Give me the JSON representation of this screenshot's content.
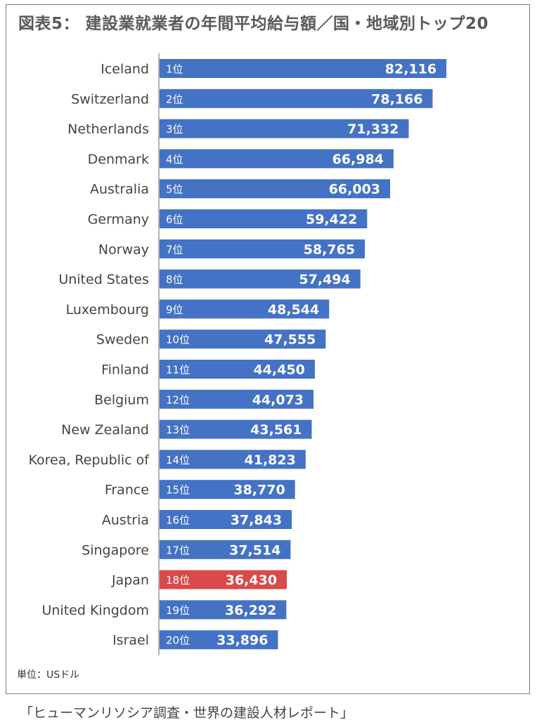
{
  "title": "図表5： 建設業就業者の年間平均給与額／国・地域別トップ20",
  "unit_note": "単位：USドル",
  "source_note": "「ヒューマンリソシア調査・世界の建設人材レポート」",
  "colors": {
    "bar": "#4472c4",
    "highlight": "#d94a4a",
    "axis": "#9a9a9a"
  },
  "chart_data": {
    "type": "bar",
    "orientation": "horizontal",
    "title": "図表5： 建設業就業者の年間平均給与額／国・地域別トップ20",
    "xlabel": "",
    "ylabel": "",
    "unit": "USドル",
    "xlim": [
      0,
      100000
    ],
    "grid": false,
    "highlight": "Japan",
    "categories": [
      "Iceland",
      "Switzerland",
      "Netherlands",
      "Denmark",
      "Australia",
      "Germany",
      "Norway",
      "United States",
      "Luxembourg",
      "Sweden",
      "Finland",
      "Belgium",
      "New Zealand",
      "Korea, Republic of",
      "France",
      "Austria",
      "Singapore",
      "Japan",
      "United Kingdom",
      "Israel"
    ],
    "ranks": [
      "1位",
      "2位",
      "3位",
      "4位",
      "5位",
      "6位",
      "7位",
      "8位",
      "9位",
      "10位",
      "11位",
      "12位",
      "13位",
      "14位",
      "15位",
      "16位",
      "17位",
      "18位",
      "19位",
      "20位"
    ],
    "values": [
      82116,
      78166,
      71332,
      66984,
      66003,
      59422,
      58765,
      57494,
      48544,
      47555,
      44450,
      44073,
      43561,
      41823,
      38770,
      37843,
      37514,
      36430,
      36292,
      33896
    ],
    "labels": [
      "82,116",
      "78,166",
      "71,332",
      "66,984",
      "66,003",
      "59,422",
      "58,765",
      "57,494",
      "48,544",
      "47,555",
      "44,450",
      "44,073",
      "43,561",
      "41,823",
      "38,770",
      "37,843",
      "37,514",
      "36,430",
      "36,292",
      "33,896"
    ]
  }
}
